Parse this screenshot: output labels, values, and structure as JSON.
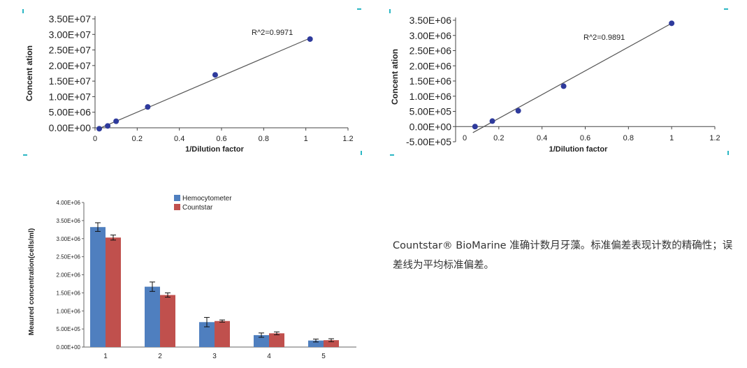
{
  "caption": "Countstar® BioMarine 准确计数月牙藻。标准偏差表现计数的精确性；误差线为平均标准偏差。",
  "chart_data": [
    {
      "type": "scatter",
      "xlabel": "1/Dilution factor",
      "ylabel": "Concent ation",
      "xlim": [
        0,
        1.2
      ],
      "ylim": [
        0,
        35000000
      ],
      "xticks": [
        "0",
        "0.2",
        "0.4",
        "0.6",
        "0.8",
        "1",
        "1.2"
      ],
      "yticks": [
        "0.00E+00",
        "5.00E+06",
        "1.00E+07",
        "1.50E+07",
        "2.00E+07",
        "2.50E+07",
        "3.00E+07",
        "3.50E+07"
      ],
      "annotation": "R^2=0.9971",
      "points": [
        [
          0.02,
          -300000
        ],
        [
          0.06,
          600000
        ],
        [
          0.1,
          2100000
        ],
        [
          0.25,
          6700000
        ],
        [
          0.57,
          17000000
        ],
        [
          1.02,
          28500000
        ]
      ],
      "trendline": [
        [
          0.02,
          -200000
        ],
        [
          1.02,
          28800000
        ]
      ],
      "colors": {
        "point": "#2e3a9c",
        "line": "#555555"
      }
    },
    {
      "type": "scatter",
      "xlabel": "1/Dilution factor",
      "ylabel": "Concent ation",
      "xlim": [
        0,
        1.2
      ],
      "ylim": [
        -500000,
        3500000
      ],
      "xticks": [
        "0",
        "0.2",
        "0.4",
        "0.6",
        "0.8",
        "1",
        "1.2"
      ],
      "yticks": [
        "-5.00E+05",
        "0.00E+00",
        "5.00E+05",
        "1.00E+06",
        "1.50E+06",
        "2.00E+06",
        "2.50E+06",
        "3.00E+06",
        "3.50E+06"
      ],
      "annotation": "R^2=0.9891",
      "points": [
        [
          0.09,
          0
        ],
        [
          0.17,
          180000
        ],
        [
          0.29,
          520000
        ],
        [
          0.5,
          1330000
        ],
        [
          1.0,
          3400000
        ]
      ],
      "trendline": [
        [
          0.08,
          -200000
        ],
        [
          1.0,
          3400000
        ]
      ],
      "colors": {
        "point": "#2e3a9c",
        "line": "#555555"
      }
    },
    {
      "type": "bar",
      "ylabel": "Meaured concentration(cells/ml)",
      "categories": [
        "1",
        "2",
        "3",
        "4",
        "5"
      ],
      "ylim": [
        0,
        4000000
      ],
      "yticks": [
        "0.00E+00",
        "5.00E+05",
        "1.00E+06",
        "1.50E+06",
        "2.00E+06",
        "2.50E+06",
        "3.00E+06",
        "3.50E+06",
        "4.00E+06"
      ],
      "series": [
        {
          "name": "Hemocytometer",
          "color": "#4f7fbf",
          "values": [
            3320000,
            1670000,
            690000,
            330000,
            180000
          ],
          "errors": [
            120000,
            130000,
            130000,
            60000,
            40000
          ]
        },
        {
          "name": "Countstar",
          "color": "#c0504d",
          "values": [
            3030000,
            1440000,
            720000,
            380000,
            190000
          ],
          "errors": [
            70000,
            60000,
            30000,
            40000,
            40000
          ]
        }
      ]
    }
  ]
}
